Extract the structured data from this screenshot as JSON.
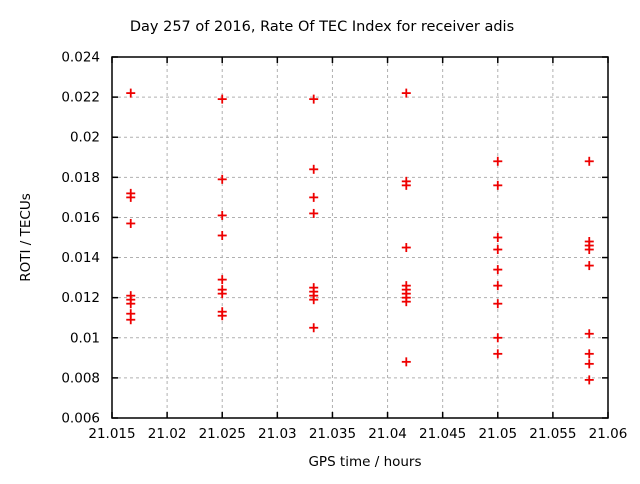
{
  "colors": {
    "background": "#ffffff",
    "marker": "#ee0000",
    "grid": "#b0b0b0",
    "axis": "#000000",
    "text": "#000000"
  },
  "chart_data": {
    "type": "scatter",
    "title": "Day 257 of 2016, Rate Of TEC Index for receiver adis",
    "xlabel": "GPS time / hours",
    "ylabel": "ROTI / TECUs",
    "xlim": [
      21.015,
      21.06
    ],
    "ylim": [
      0.006,
      0.024
    ],
    "xtick_labels": [
      "21.015",
      "21.02",
      "21.025",
      "21.03",
      "21.035",
      "21.04",
      "21.045",
      "21.05",
      "21.055",
      "21.06"
    ],
    "ytick_labels": [
      "0.006",
      "0.008",
      "0.01",
      "0.012",
      "0.014",
      "0.016",
      "0.018",
      "0.02",
      "0.022",
      "0.024"
    ],
    "grid": true,
    "grid_style": "dashed",
    "legend": "none",
    "marker": {
      "shape": "plus",
      "color": "#ee0000",
      "size": 9,
      "stroke_width": 1.8
    },
    "series": [
      {
        "name": "ROTI",
        "points": [
          [
            21.0167,
            0.0222
          ],
          [
            21.0167,
            0.0172
          ],
          [
            21.0167,
            0.017
          ],
          [
            21.0167,
            0.0157
          ],
          [
            21.0167,
            0.0121
          ],
          [
            21.0167,
            0.0119
          ],
          [
            21.0167,
            0.0117
          ],
          [
            21.0167,
            0.0112
          ],
          [
            21.0167,
            0.0109
          ],
          [
            21.025,
            0.0219
          ],
          [
            21.025,
            0.0179
          ],
          [
            21.025,
            0.0161
          ],
          [
            21.025,
            0.0151
          ],
          [
            21.025,
            0.0129
          ],
          [
            21.025,
            0.0124
          ],
          [
            21.025,
            0.0122
          ],
          [
            21.025,
            0.0113
          ],
          [
            21.025,
            0.0111
          ],
          [
            21.0333,
            0.0219
          ],
          [
            21.0333,
            0.0184
          ],
          [
            21.0333,
            0.017
          ],
          [
            21.0333,
            0.0162
          ],
          [
            21.0333,
            0.0125
          ],
          [
            21.0333,
            0.0123
          ],
          [
            21.0333,
            0.0121
          ],
          [
            21.0333,
            0.0119
          ],
          [
            21.0333,
            0.0105
          ],
          [
            21.0417,
            0.0222
          ],
          [
            21.0417,
            0.0178
          ],
          [
            21.0417,
            0.0176
          ],
          [
            21.0417,
            0.0145
          ],
          [
            21.0417,
            0.0126
          ],
          [
            21.0417,
            0.0124
          ],
          [
            21.0417,
            0.0122
          ],
          [
            21.0417,
            0.012
          ],
          [
            21.0417,
            0.0118
          ],
          [
            21.0417,
            0.0088
          ],
          [
            21.05,
            0.0188
          ],
          [
            21.05,
            0.0176
          ],
          [
            21.05,
            0.015
          ],
          [
            21.05,
            0.0144
          ],
          [
            21.05,
            0.0134
          ],
          [
            21.05,
            0.0126
          ],
          [
            21.05,
            0.0117
          ],
          [
            21.05,
            0.01
          ],
          [
            21.05,
            0.0092
          ],
          [
            21.0583,
            0.0188
          ],
          [
            21.0583,
            0.0148
          ],
          [
            21.0583,
            0.0146
          ],
          [
            21.0583,
            0.0144
          ],
          [
            21.0583,
            0.0136
          ],
          [
            21.0583,
            0.0102
          ],
          [
            21.0583,
            0.0092
          ],
          [
            21.0583,
            0.0087
          ],
          [
            21.0583,
            0.0079
          ]
        ]
      }
    ]
  }
}
